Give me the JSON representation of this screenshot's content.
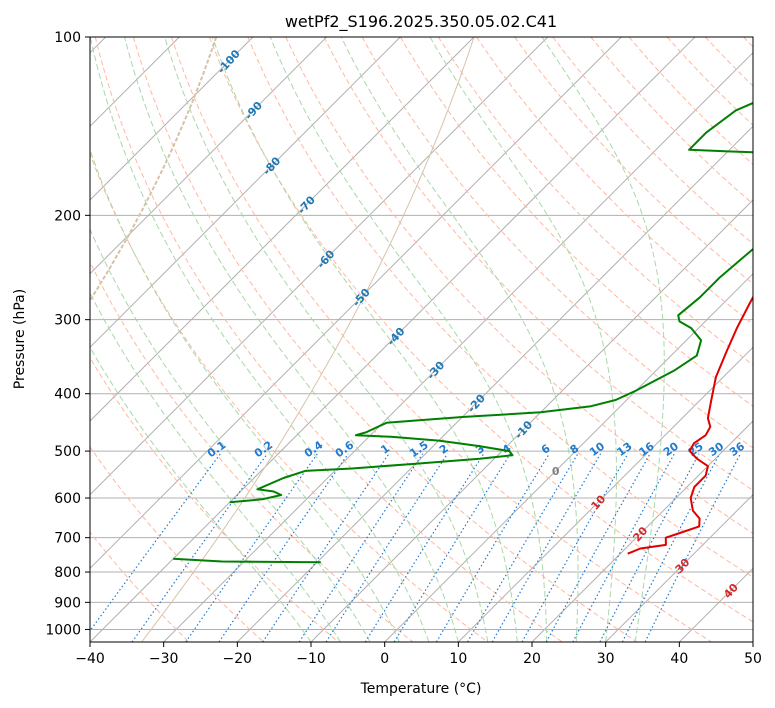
{
  "chart_data": {
    "type": "line",
    "title": "wetPf2_S196.2025.350.05.02.C41",
    "xlabel": "Temperature (°C)",
    "ylabel": "Pressure (hPa)",
    "xlim": [
      -40,
      50
    ],
    "ylim": [
      1050,
      100
    ],
    "y_scale": "log",
    "x_ticks": [
      "−40",
      "−30",
      "−20",
      "−10",
      "0",
      "10",
      "20",
      "30",
      "40",
      "50"
    ],
    "x_tick_values": [
      -40,
      -30,
      -20,
      -10,
      0,
      10,
      20,
      30,
      40,
      50
    ],
    "y_ticks": [
      "100",
      "200",
      "300",
      "400",
      "500",
      "600",
      "700",
      "800",
      "900",
      "1000"
    ],
    "y_tick_values": [
      100,
      200,
      300,
      400,
      500,
      600,
      700,
      800,
      900,
      1000
    ],
    "grid": true,
    "series": [
      {
        "color": "#e00000",
        "points": [
          [
            12.2,
            100
          ],
          [
            12.5,
            120
          ],
          [
            11.5,
            135
          ],
          [
            9.0,
            150
          ],
          [
            5.5,
            165
          ],
          [
            3.0,
            180
          ],
          [
            1.5,
            190
          ],
          [
            -0.5,
            200
          ],
          [
            -0.8,
            215
          ],
          [
            1.0,
            240
          ],
          [
            3.5,
            280
          ],
          [
            5.2,
            310
          ],
          [
            7.0,
            340
          ],
          [
            9.0,
            375
          ],
          [
            11.5,
            410
          ],
          [
            13.5,
            440
          ],
          [
            15.0,
            455
          ],
          [
            15.5,
            470
          ],
          [
            15.0,
            485
          ],
          [
            15.5,
            500
          ],
          [
            17.5,
            515
          ],
          [
            20.0,
            530
          ],
          [
            21.0,
            550
          ],
          [
            21.0,
            575
          ],
          [
            22.0,
            600
          ],
          [
            24.0,
            630
          ],
          [
            26.0,
            650
          ],
          [
            27.0,
            670
          ],
          [
            25.0,
            690
          ],
          [
            24.0,
            700
          ],
          [
            25.0,
            720
          ],
          [
            22.0,
            730
          ],
          [
            21.0,
            745
          ]
        ]
      },
      {
        "color": "#008000",
        "points": [
          [
            -6.5,
            100
          ],
          [
            -10.0,
            105
          ],
          [
            -11.5,
            110
          ],
          [
            -12.0,
            115
          ],
          [
            -12.0,
            120
          ],
          [
            -15.0,
            124
          ],
          [
            -22.0,
            126
          ],
          [
            -24.5,
            133
          ],
          [
            -25.5,
            145
          ],
          [
            -25.5,
            155
          ],
          [
            -20.0,
            156
          ],
          [
            -13.0,
            157
          ],
          [
            -10.0,
            163
          ],
          [
            -9.5,
            170
          ],
          [
            -9.5,
            180
          ],
          [
            -9.0,
            184
          ],
          [
            -7.5,
            188
          ],
          [
            -4.5,
            192
          ],
          [
            -3.5,
            200
          ],
          [
            -3.0,
            215
          ],
          [
            -3.5,
            235
          ],
          [
            -4.0,
            255
          ],
          [
            -4.0,
            275
          ],
          [
            -4.5,
            295
          ],
          [
            -3.5,
            302
          ],
          [
            -1.0,
            310
          ],
          [
            2.0,
            325
          ],
          [
            3.5,
            345
          ],
          [
            2.5,
            365
          ],
          [
            0.0,
            395
          ],
          [
            -1.5,
            410
          ],
          [
            -4.0,
            420
          ],
          [
            -10.0,
            430
          ],
          [
            -20.0,
            438
          ],
          [
            -25.0,
            443
          ],
          [
            -29.5,
            448
          ],
          [
            -31.0,
            465
          ],
          [
            -32.0,
            470
          ],
          [
            -27.0,
            473
          ],
          [
            -20.0,
            480
          ],
          [
            -14.0,
            490
          ],
          [
            -9.0,
            500
          ],
          [
            -8.0,
            508
          ],
          [
            -12.0,
            515
          ],
          [
            -20.0,
            525
          ],
          [
            -28.0,
            535
          ],
          [
            -34.0,
            540
          ],
          [
            -36.0,
            555
          ],
          [
            -38.0,
            580
          ],
          [
            -35.5,
            585
          ],
          [
            -34.0,
            593
          ],
          [
            -36.0,
            603
          ],
          [
            -40.0,
            610
          ]
        ]
      },
      {
        "color": "#008000",
        "points": [
          [
            -40.0,
            760
          ],
          [
            -33.0,
            768
          ],
          [
            -19.5,
            770
          ]
        ]
      }
    ],
    "mixing_ratio_labels": [
      "0.1",
      "0.2",
      "0.4",
      "0.6",
      "1",
      "1.5",
      "2",
      "3",
      "4",
      "6",
      "8",
      "10",
      "13",
      "16",
      "20",
      "25",
      "30",
      "36"
    ],
    "wetbulb_zero_label": "0",
    "isotherm_labels_blue": [
      "-100",
      "-90",
      "-80",
      "-70",
      "-60",
      "-50",
      "-40",
      "-30",
      "-20",
      "-10"
    ],
    "isotherm_labels_red": [
      "10",
      "20",
      "30",
      "40"
    ],
    "colors": {
      "temperature": "#e00000",
      "dewpoint": "#008000",
      "mixing_ratio": "#1f7ad0",
      "isotherm_label_blue": "#1f77b4",
      "isotherm_label_red": "#d62728",
      "dry_adiabat": "#ffb8a0",
      "moist_adiabat": "#a8d8a8",
      "skewed_isotherm": "#b0b0b0",
      "curved_guides": "#d7c2a8"
    }
  }
}
